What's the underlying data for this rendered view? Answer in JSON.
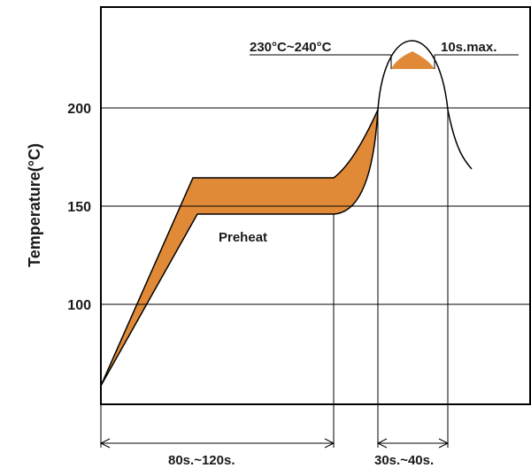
{
  "chart_data": {
    "type": "line",
    "title": "",
    "xlabel": "",
    "ylabel": "Temperature(°C)",
    "ylim": [
      55,
      245
    ],
    "grid": true,
    "ytick_labels": [
      "100",
      "150",
      "200"
    ],
    "ytick_values": [
      100,
      150,
      200
    ],
    "colors": {
      "band": "#e08a38",
      "line": "#000000"
    },
    "annotations": {
      "peak_range": "230°C~240°C",
      "peak_time": "10s.max.",
      "preheat": "Preheat",
      "preheat_time": "80s.~120s.",
      "reflow_time": "30s.~40s."
    },
    "series": [
      {
        "values_description": "upper",
        "x": [
          0,
          47,
          117,
          138,
          145,
          147,
          149
        ],
        "y": [
          60,
          165,
          165,
          175,
          192,
          200,
          200
        ]
      },
      {
        "values_description": "lower",
        "x": [
          0,
          50,
          117,
          125,
          137,
          145,
          149,
          152,
          159,
          166,
          172,
          180,
          188
        ],
        "y": [
          60,
          147,
          147,
          150,
          170,
          200,
          216,
          226,
          230,
          230,
          226,
          200,
          170
        ]
      }
    ]
  }
}
